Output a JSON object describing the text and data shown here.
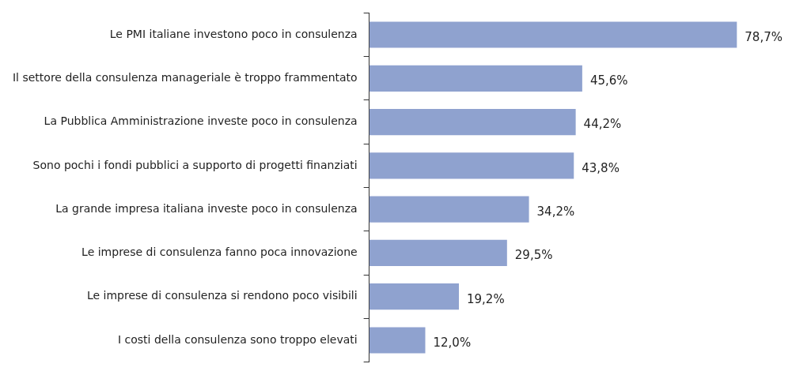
{
  "chart_data": {
    "type": "bar",
    "orientation": "horizontal",
    "categories": [
      "Le PMI italiane investono poco in consulenza",
      "Il settore della consulenza manageriale è troppo frammentato",
      "La Pubblica Amministrazione investe poco in consulenza",
      "Sono pochi i fondi pubblici a supporto di progetti finanziati",
      "La grande impresa italiana investe poco in consulenza",
      "Le imprese di consulenza fanno poca innovazione",
      "Le imprese di consulenza si rendono poco visibili",
      "I costi della consulenza sono troppo elevati"
    ],
    "values": [
      78.7,
      45.6,
      44.2,
      43.8,
      34.2,
      29.5,
      19.2,
      12.0
    ],
    "value_labels": [
      "78,7%",
      "45,6%",
      "44,2%",
      "43,8%",
      "34,2%",
      "29,5%",
      "19,2%",
      "12,0%"
    ],
    "color": "#8fa2cf",
    "tick_labels": "y",
    "grid": false,
    "legend": false
  }
}
